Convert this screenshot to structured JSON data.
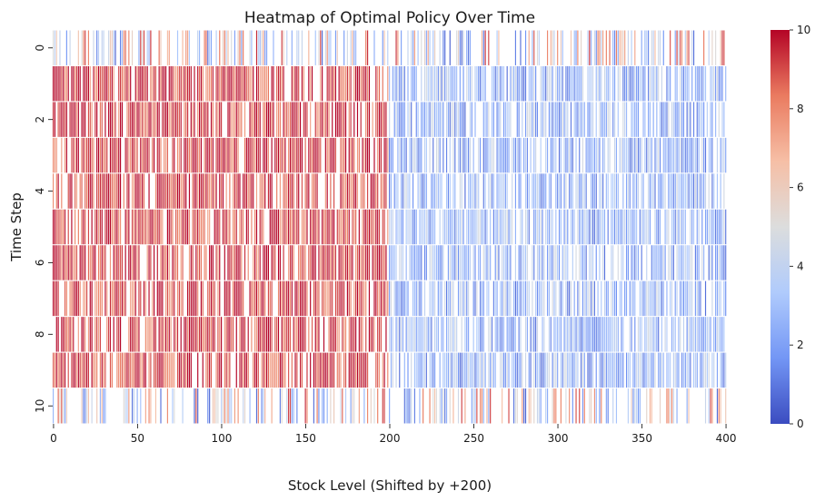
{
  "chart_data": {
    "type": "heatmap",
    "title": "Heatmap of Optimal Policy Over Time",
    "xlabel": "Stock Level (Shifted by +200)",
    "ylabel": "Time Step",
    "x_range": [
      0,
      400
    ],
    "y_range": [
      0,
      10
    ],
    "rows": 11,
    "x_ticks": [
      0,
      50,
      100,
      150,
      200,
      250,
      300,
      350,
      400
    ],
    "y_ticks": [
      0,
      2,
      4,
      6,
      8,
      10
    ],
    "value_range": [
      0,
      10
    ],
    "colorbar_ticks": [
      0,
      2,
      4,
      6,
      8,
      10
    ],
    "colormap": "coolwarm",
    "colormap_stops": [
      "#3b4cc0",
      "#7396f5",
      "#b0cbfc",
      "#dcdddd",
      "#f6bfa6",
      "#ea7b60",
      "#b40426"
    ],
    "row_profiles": [
      {
        "time_step": 0,
        "low_stock_mean": 5.0,
        "high_stock_mean": 5.0,
        "noise": 4.5,
        "blank_rate": 0.5
      },
      {
        "time_step": 1,
        "low_stock_mean": 9.3,
        "high_stock_mean": 2.8,
        "noise": 2.0,
        "blank_rate": 0.22
      },
      {
        "time_step": 2,
        "low_stock_mean": 9.3,
        "high_stock_mean": 2.8,
        "noise": 2.0,
        "blank_rate": 0.22
      },
      {
        "time_step": 3,
        "low_stock_mean": 9.3,
        "high_stock_mean": 2.8,
        "noise": 2.0,
        "blank_rate": 0.22
      },
      {
        "time_step": 4,
        "low_stock_mean": 9.3,
        "high_stock_mean": 2.8,
        "noise": 2.0,
        "blank_rate": 0.22
      },
      {
        "time_step": 5,
        "low_stock_mean": 9.3,
        "high_stock_mean": 2.8,
        "noise": 2.0,
        "blank_rate": 0.22
      },
      {
        "time_step": 6,
        "low_stock_mean": 9.3,
        "high_stock_mean": 2.8,
        "noise": 2.0,
        "blank_rate": 0.22
      },
      {
        "time_step": 7,
        "low_stock_mean": 9.3,
        "high_stock_mean": 2.8,
        "noise": 2.0,
        "blank_rate": 0.22
      },
      {
        "time_step": 8,
        "low_stock_mean": 9.3,
        "high_stock_mean": 2.8,
        "noise": 2.0,
        "blank_rate": 0.22
      },
      {
        "time_step": 9,
        "low_stock_mean": 9.3,
        "high_stock_mean": 2.8,
        "noise": 2.0,
        "blank_rate": 0.22
      },
      {
        "time_step": 10,
        "low_stock_mean": 5.0,
        "high_stock_mean": 5.0,
        "noise": 4.5,
        "blank_rate": 0.5
      }
    ],
    "threshold_stock_level": 200,
    "grid": false
  }
}
